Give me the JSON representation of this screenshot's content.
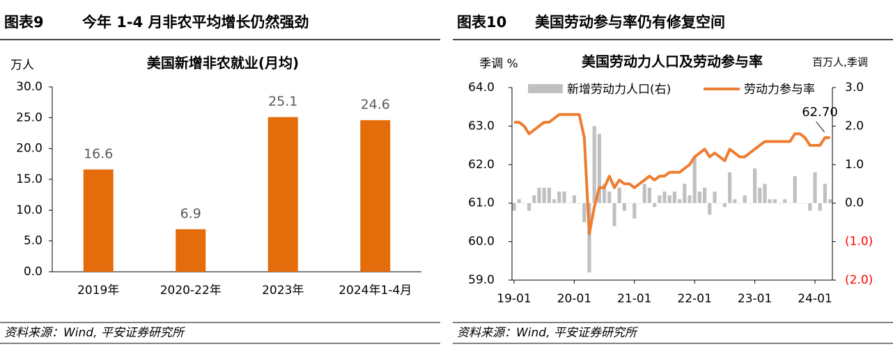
{
  "chart_data": [
    {
      "type": "bar",
      "figure_label": "图表9",
      "figure_title": "今年 1-4 月非农平均增长仍然强劲",
      "title": "美国新增非农就业(月均)",
      "ylabel": "万人",
      "source": "资料来源：Wind, 平安证券研究所",
      "categories": [
        "2019年",
        "2020-22年",
        "2023年",
        "2024年1-4月"
      ],
      "values": [
        16.6,
        6.9,
        25.1,
        24.6
      ],
      "color": "#e46c0a",
      "ylim": [
        0,
        30
      ],
      "yticks": [
        {
          "value": 0,
          "label": "0.0"
        },
        {
          "value": 5,
          "label": "5.0"
        },
        {
          "value": 10,
          "label": "10.0"
        },
        {
          "value": 15,
          "label": "15.0"
        },
        {
          "value": 20,
          "label": "20.0"
        },
        {
          "value": 25,
          "label": "25.0"
        },
        {
          "value": 30,
          "label": "30.0"
        }
      ],
      "grid": false
    },
    {
      "type": "combo",
      "figure_label": "图表10",
      "figure_title": "美国劳动参与率仍有修复空间",
      "title": "美国劳动力人口及劳动参与率",
      "ylabel": "季调 %",
      "y2label": "百万人,季调",
      "source": "资料来源：Wind, 平安证券研究所",
      "annotation": "62.70",
      "categories": [
        "19-01",
        null,
        null,
        null,
        null,
        null,
        null,
        null,
        null,
        null,
        null,
        null,
        "20-01",
        null,
        null,
        null,
        null,
        null,
        null,
        null,
        null,
        null,
        null,
        null,
        "21-01",
        null,
        null,
        null,
        null,
        null,
        null,
        null,
        null,
        null,
        null,
        null,
        "22-01",
        null,
        null,
        null,
        null,
        null,
        null,
        null,
        null,
        null,
        null,
        null,
        "23-01",
        null,
        null,
        null,
        null,
        null,
        null,
        null,
        null,
        null,
        null,
        null,
        "24-01",
        null,
        null,
        null
      ],
      "series": [
        {
          "name": "新增劳动力人口(右)",
          "type": "bar",
          "axis": "y2",
          "color": "#c0c0c0",
          "values": [
            -0.2,
            0.1,
            0.0,
            -0.2,
            0.2,
            0.4,
            0.4,
            0.4,
            0.1,
            0.3,
            0.3,
            0.0,
            0.2,
            0.0,
            -0.5,
            -1.8,
            2.0,
            1.8,
            0.5,
            0.3,
            -0.6,
            0.4,
            -0.2,
            0.0,
            -0.4,
            0.0,
            0.5,
            0.4,
            -0.1,
            0.2,
            0.3,
            0.2,
            0.3,
            0.1,
            0.5,
            0.2,
            1.2,
            0.3,
            0.4,
            -0.3,
            0.3,
            0.0,
            -0.1,
            0.8,
            0.1,
            0.0,
            0.2,
            0.0,
            0.9,
            0.4,
            0.5,
            0.1,
            0.1,
            0.0,
            0.1,
            0.0,
            0.7,
            0.0,
            0.0,
            -0.2,
            0.8,
            -0.2,
            0.5,
            0.1
          ]
        },
        {
          "name": "劳动力参与率",
          "type": "line",
          "color": "#ed7d31",
          "values": [
            63.1,
            63.1,
            63.0,
            62.8,
            62.9,
            63.0,
            63.1,
            63.1,
            63.2,
            63.3,
            63.3,
            63.3,
            63.3,
            63.3,
            62.7,
            60.2,
            60.9,
            61.4,
            61.4,
            61.7,
            61.4,
            61.6,
            61.5,
            61.5,
            61.4,
            61.5,
            61.6,
            61.7,
            61.6,
            61.7,
            61.7,
            61.8,
            61.8,
            61.8,
            61.9,
            62.0,
            62.2,
            62.3,
            62.4,
            62.2,
            62.3,
            62.2,
            62.1,
            62.4,
            62.3,
            62.2,
            62.2,
            62.3,
            62.4,
            62.5,
            62.6,
            62.6,
            62.6,
            62.6,
            62.6,
            62.6,
            62.8,
            62.8,
            62.7,
            62.5,
            62.5,
            62.5,
            62.7,
            62.7
          ]
        }
      ],
      "ylim": [
        59,
        64
      ],
      "yticks": [
        {
          "value": 59,
          "label": "59.0"
        },
        {
          "value": 60,
          "label": "60.0"
        },
        {
          "value": 61,
          "label": "61.0"
        },
        {
          "value": 62,
          "label": "62.0"
        },
        {
          "value": 63,
          "label": "63.0"
        },
        {
          "value": 64,
          "label": "64.0"
        }
      ],
      "y2lim": [
        -2,
        3
      ],
      "y2ticks": [
        {
          "value": -2,
          "label": "(2.0)"
        },
        {
          "value": -1,
          "label": "(1.0)"
        },
        {
          "value": 0,
          "label": "0.0"
        },
        {
          "value": 1,
          "label": "1.0"
        },
        {
          "value": 2,
          "label": "2.0"
        },
        {
          "value": 3,
          "label": "3.0"
        }
      ],
      "legend": "top",
      "grid": false
    }
  ]
}
